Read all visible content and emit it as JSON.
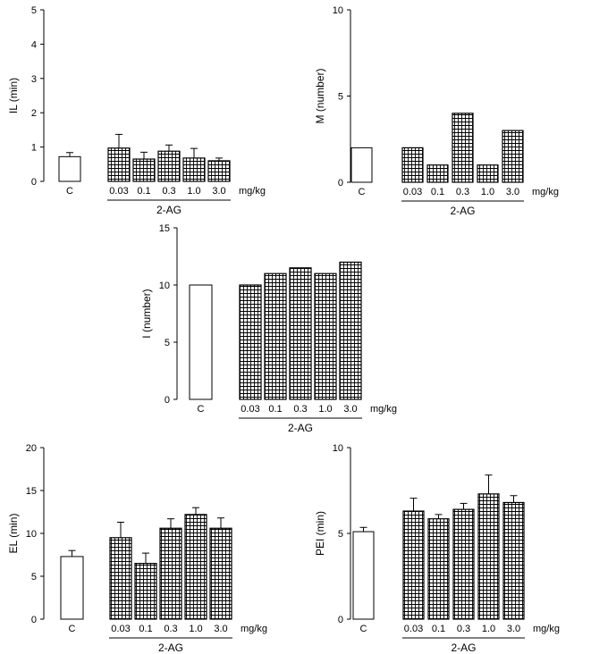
{
  "colors": {
    "bar_edge": "#000000",
    "control_fill": "#ffffff",
    "treatment_fill": "#ffffff",
    "hatch": "#000000"
  },
  "chart_data": [
    {
      "id": "il",
      "type": "bar",
      "ylabel": "IL (min)",
      "ylim": [
        0,
        5
      ],
      "yticks": [
        "0",
        "1",
        "2",
        "3",
        "4",
        "5"
      ],
      "control": {
        "label": "C",
        "value": 0.72,
        "err": 0.12
      },
      "categories": [
        "0.03",
        "0.1",
        "0.3",
        "1.0",
        "3.0"
      ],
      "values": [
        0.97,
        0.65,
        0.88,
        0.68,
        0.6
      ],
      "errors": [
        0.4,
        0.2,
        0.18,
        0.28,
        0.08
      ],
      "unit": "mg/kg",
      "group_label": "2-AG"
    },
    {
      "id": "m",
      "type": "bar",
      "ylabel": "M (number)",
      "ylim": [
        0,
        10
      ],
      "yticks": [
        "0",
        "5",
        "10"
      ],
      "control": {
        "label": "C",
        "value": 2.0,
        "err": 0
      },
      "categories": [
        "0.03",
        "0.1",
        "0.3",
        "1.0",
        "3.0"
      ],
      "values": [
        2.0,
        1.0,
        4.0,
        1.0,
        3.0
      ],
      "errors": [
        0,
        0,
        0,
        0,
        0
      ],
      "unit": "mg/kg",
      "group_label": "2-AG"
    },
    {
      "id": "i",
      "type": "bar",
      "ylabel": "I (number)",
      "ylim": [
        0,
        15
      ],
      "yticks": [
        "0",
        "5",
        "10",
        "15"
      ],
      "control": {
        "label": "C",
        "value": 10.0,
        "err": 0
      },
      "categories": [
        "0.03",
        "0.1",
        "0.3",
        "1.0",
        "3.0"
      ],
      "values": [
        10.0,
        11.0,
        11.5,
        11.0,
        12.0
      ],
      "errors": [
        0,
        0,
        0,
        0,
        0
      ],
      "unit": "mg/kg",
      "group_label": "2-AG"
    },
    {
      "id": "el",
      "type": "bar",
      "ylabel": "EL (min)",
      "ylim": [
        0,
        20
      ],
      "yticks": [
        "0",
        "5",
        "10",
        "15",
        "20"
      ],
      "control": {
        "label": "C",
        "value": 7.3,
        "err": 0.7
      },
      "categories": [
        "0.03",
        "0.1",
        "0.3",
        "1.0",
        "3.0"
      ],
      "values": [
        9.5,
        6.5,
        10.6,
        12.2,
        10.6
      ],
      "errors": [
        1.8,
        1.2,
        1.1,
        0.8,
        1.2
      ],
      "unit": "mg/kg",
      "group_label": "2-AG"
    },
    {
      "id": "pei",
      "type": "bar",
      "ylabel": "PEI (min)",
      "ylim": [
        0,
        10
      ],
      "yticks": [
        "0",
        "5",
        "10"
      ],
      "control": {
        "label": "C",
        "value": 5.1,
        "err": 0.25
      },
      "categories": [
        "0.03",
        "0.1",
        "0.3",
        "1.0",
        "3.0"
      ],
      "values": [
        6.3,
        5.85,
        6.4,
        7.3,
        6.8
      ],
      "errors": [
        0.75,
        0.25,
        0.35,
        1.1,
        0.4
      ],
      "unit": "mg/kg",
      "group_label": "2-AG"
    }
  ]
}
